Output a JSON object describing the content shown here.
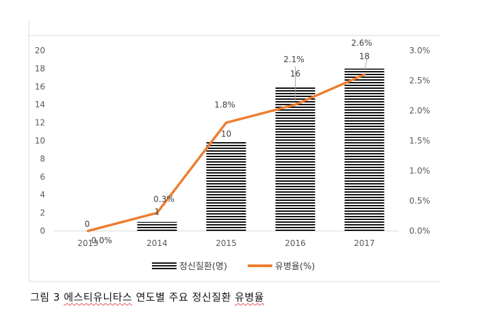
{
  "chart_data": {
    "type": "bar+line",
    "categories": [
      "2013",
      "2014",
      "2015",
      "2016",
      "2017"
    ],
    "series": [
      {
        "name": "정신질환(명)",
        "type": "bar",
        "axis": "left",
        "values": [
          0,
          1,
          10,
          16,
          18
        ],
        "labels": [
          "0",
          "1",
          "10",
          "16",
          "18"
        ]
      },
      {
        "name": "유병율(%)",
        "type": "line",
        "axis": "right",
        "values": [
          0.0,
          0.3,
          1.8,
          2.1,
          2.6
        ],
        "labels": [
          "0.0%",
          "0.3%",
          "1.8%",
          "2.1%",
          "2.6%"
        ]
      }
    ],
    "y_left": {
      "min": 0,
      "max": 20,
      "ticks": [
        "0",
        "2",
        "4",
        "6",
        "8",
        "10",
        "12",
        "14",
        "16",
        "18",
        "20"
      ]
    },
    "y_right": {
      "min": 0,
      "max": 3.0,
      "ticks": [
        "0.0%",
        "0.5%",
        "1.0%",
        "1.5%",
        "2.0%",
        "2.5%",
        "3.0%"
      ]
    },
    "grid": false,
    "legend": "bottom",
    "colors": {
      "bar": "#111111",
      "line": "#ed7d31",
      "axis_text": "#595959",
      "frame": "#d9d9d9"
    }
  },
  "caption": {
    "prefix": "그림 3 ",
    "underlined_1": "에스티유니타스",
    "middle": " 연도별 주요 정신질환 ",
    "underlined_2": "유병율"
  }
}
